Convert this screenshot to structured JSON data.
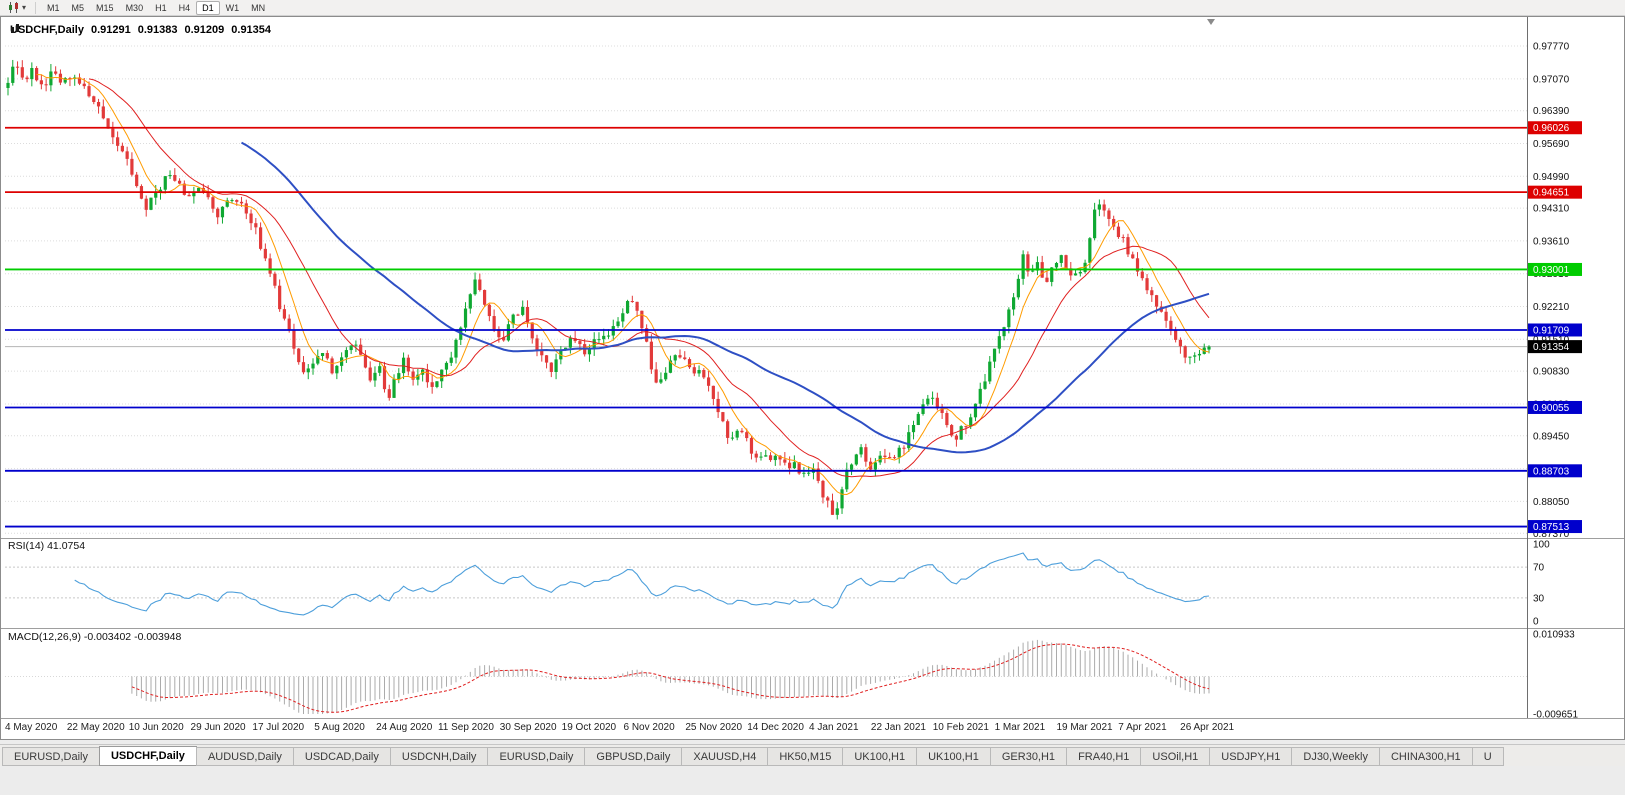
{
  "toolbar": {
    "chart_type_icon": "candlestick-chart-icon",
    "dropdown_icon": "chevron-down-icon",
    "timeframes": [
      "M1",
      "M5",
      "M15",
      "M30",
      "H1",
      "H4",
      "D1",
      "W1",
      "MN"
    ],
    "active_timeframe": "D1"
  },
  "chart": {
    "symbol": "USDCHF,Daily",
    "open": "0.91291",
    "high": "0.91383",
    "low": "0.91209",
    "close": "0.91354"
  },
  "chart_data": {
    "type": "candlestick",
    "symbol": "USDCHF",
    "timeframe": "Daily",
    "title": "USDCHF,Daily 0.91291 0.91383 0.91209 0.91354",
    "current_ohlc": {
      "open": 0.91291,
      "high": 0.91383,
      "low": 0.91209,
      "close": 0.91354
    },
    "current_price": 0.91354,
    "current_price_label": "0.91354",
    "y_axis": {
      "ticks": [
        0.9777,
        0.9707,
        0.9639,
        0.9569,
        0.9499,
        0.9431,
        0.9361,
        0.9291,
        0.9221,
        0.9151,
        0.9083,
        0.9013,
        0.8945,
        0.8875,
        0.8805,
        0.8737
      ],
      "plot_price_top": 0.9839,
      "plot_price_bottom": 0.8729
    },
    "x_axis": {
      "dates": [
        "4 May 2020",
        "22 May 2020",
        "10 Jun 2020",
        "29 Jun 2020",
        "17 Jul 2020",
        "5 Aug 2020",
        "24 Aug 2020",
        "11 Sep 2020",
        "30 Sep 2020",
        "19 Oct 2020",
        "6 Nov 2020",
        "25 Nov 2020",
        "14 Dec 2020",
        "4 Jan 2021",
        "22 Jan 2021",
        "10 Feb 2021",
        "1 Mar 2021",
        "19 Mar 2021",
        "7 Apr 2021",
        "26 Apr 2021"
      ]
    },
    "levels": [
      {
        "price": 0.96026,
        "label": "0.96026",
        "color": "#DD0000"
      },
      {
        "price": 0.94651,
        "label": "0.94651",
        "color": "#DD0000"
      },
      {
        "price": 0.93001,
        "label": "0.93001",
        "color": "#00CC00"
      },
      {
        "price": 0.91709,
        "label": "0.91709",
        "color": "#0000CC"
      },
      {
        "price": 0.90055,
        "label": "0.90055",
        "color": "#0000CC"
      },
      {
        "price": 0.88703,
        "label": "0.88703",
        "color": "#0000CC"
      },
      {
        "price": 0.87513,
        "label": "0.87513",
        "color": "#0000CC"
      }
    ],
    "candle_count": 253,
    "price_path": [
      [
        0.0,
        0.969
      ],
      [
        0.006,
        0.9745
      ],
      [
        0.012,
        0.9705
      ],
      [
        0.02,
        0.9725
      ],
      [
        0.028,
        0.969
      ],
      [
        0.036,
        0.9718
      ],
      [
        0.044,
        0.97
      ],
      [
        0.053,
        0.9712
      ],
      [
        0.062,
        0.9695
      ],
      [
        0.072,
        0.966
      ],
      [
        0.082,
        0.9615
      ],
      [
        0.092,
        0.9565
      ],
      [
        0.1,
        0.953
      ],
      [
        0.108,
        0.948
      ],
      [
        0.114,
        0.9432
      ],
      [
        0.12,
        0.945
      ],
      [
        0.127,
        0.9475
      ],
      [
        0.134,
        0.9505
      ],
      [
        0.142,
        0.9478
      ],
      [
        0.15,
        0.9462
      ],
      [
        0.158,
        0.9472
      ],
      [
        0.166,
        0.945
      ],
      [
        0.174,
        0.942
      ],
      [
        0.182,
        0.9438
      ],
      [
        0.19,
        0.9448
      ],
      [
        0.198,
        0.9425
      ],
      [
        0.206,
        0.9388
      ],
      [
        0.214,
        0.9322
      ],
      [
        0.222,
        0.9258
      ],
      [
        0.23,
        0.9192
      ],
      [
        0.238,
        0.9135
      ],
      [
        0.246,
        0.908
      ],
      [
        0.254,
        0.9108
      ],
      [
        0.263,
        0.9125
      ],
      [
        0.271,
        0.9082
      ],
      [
        0.279,
        0.9112
      ],
      [
        0.287,
        0.9148
      ],
      [
        0.295,
        0.9105
      ],
      [
        0.303,
        0.9062
      ],
      [
        0.31,
        0.9092
      ],
      [
        0.316,
        0.9022
      ],
      [
        0.323,
        0.9068
      ],
      [
        0.33,
        0.9108
      ],
      [
        0.338,
        0.9062
      ],
      [
        0.346,
        0.9078
      ],
      [
        0.354,
        0.9045
      ],
      [
        0.361,
        0.9082
      ],
      [
        0.368,
        0.9105
      ],
      [
        0.376,
        0.9172
      ],
      [
        0.383,
        0.9242
      ],
      [
        0.39,
        0.9278
      ],
      [
        0.397,
        0.9225
      ],
      [
        0.404,
        0.9182
      ],
      [
        0.412,
        0.9152
      ],
      [
        0.421,
        0.9208
      ],
      [
        0.429,
        0.9218
      ],
      [
        0.437,
        0.9152
      ],
      [
        0.445,
        0.9112
      ],
      [
        0.453,
        0.9088
      ],
      [
        0.461,
        0.9122
      ],
      [
        0.468,
        0.9152
      ],
      [
        0.474,
        0.9138
      ],
      [
        0.482,
        0.9122
      ],
      [
        0.49,
        0.9162
      ],
      [
        0.498,
        0.9148
      ],
      [
        0.506,
        0.9182
      ],
      [
        0.514,
        0.9225
      ],
      [
        0.52,
        0.9232
      ],
      [
        0.526,
        0.9185
      ],
      [
        0.532,
        0.9142
      ],
      [
        0.539,
        0.9052
      ],
      [
        0.546,
        0.9082
      ],
      [
        0.553,
        0.9112
      ],
      [
        0.561,
        0.9108
      ],
      [
        0.569,
        0.9088
      ],
      [
        0.579,
        0.9082
      ],
      [
        0.586,
        0.9032
      ],
      [
        0.593,
        0.8982
      ],
      [
        0.601,
        0.8938
      ],
      [
        0.609,
        0.8962
      ],
      [
        0.617,
        0.8922
      ],
      [
        0.625,
        0.8902
      ],
      [
        0.632,
        0.8892
      ],
      [
        0.64,
        0.8912
      ],
      [
        0.648,
        0.8872
      ],
      [
        0.656,
        0.8885
      ],
      [
        0.664,
        0.8852
      ],
      [
        0.671,
        0.8882
      ],
      [
        0.678,
        0.8825
      ],
      [
        0.684,
        0.8802
      ],
      [
        0.689,
        0.8768
      ],
      [
        0.695,
        0.8842
      ],
      [
        0.702,
        0.8892
      ],
      [
        0.71,
        0.8912
      ],
      [
        0.718,
        0.8882
      ],
      [
        0.726,
        0.8902
      ],
      [
        0.737,
        0.8892
      ],
      [
        0.745,
        0.8922
      ],
      [
        0.753,
        0.8962
      ],
      [
        0.761,
        0.9012
      ],
      [
        0.768,
        0.9042
      ],
      [
        0.775,
        0.9002
      ],
      [
        0.782,
        0.8962
      ],
      [
        0.789,
        0.8938
      ],
      [
        0.796,
        0.8968
      ],
      [
        0.803,
        0.8992
      ],
      [
        0.81,
        0.9042
      ],
      [
        0.817,
        0.9092
      ],
      [
        0.824,
        0.9142
      ],
      [
        0.831,
        0.9192
      ],
      [
        0.838,
        0.9252
      ],
      [
        0.845,
        0.9332
      ],
      [
        0.851,
        0.9292
      ],
      [
        0.857,
        0.9322
      ],
      [
        0.863,
        0.9272
      ],
      [
        0.87,
        0.9302
      ],
      [
        0.877,
        0.9322
      ],
      [
        0.884,
        0.9282
      ],
      [
        0.895,
        0.9292
      ],
      [
        0.901,
        0.9362
      ],
      [
        0.906,
        0.9442
      ],
      [
        0.91,
        0.9452
      ],
      [
        0.915,
        0.9422
      ],
      [
        0.92,
        0.9402
      ],
      [
        0.926,
        0.9372
      ],
      [
        0.932,
        0.9342
      ],
      [
        0.938,
        0.9312
      ],
      [
        0.947,
        0.9272
      ],
      [
        0.953,
        0.9242
      ],
      [
        0.959,
        0.9212
      ],
      [
        0.965,
        0.9178
      ],
      [
        0.971,
        0.9152
      ],
      [
        0.977,
        0.9132
      ],
      [
        0.983,
        0.9102
      ],
      [
        0.989,
        0.9122
      ],
      [
        0.996,
        0.9138
      ],
      [
        1.0,
        0.9135
      ]
    ],
    "moving_averages": [
      {
        "name": "ma-fast",
        "period": 7,
        "color": "#FF9C00",
        "width": 1
      },
      {
        "name": "ma-mid",
        "period": 18,
        "color": "#E02020",
        "width": 1
      },
      {
        "name": "ma-slow",
        "period": 50,
        "color": "#2E4FC4",
        "width": 2
      }
    ],
    "indicators": [
      {
        "name": "RSI",
        "label": "RSI(14) 41.0754",
        "period": 14,
        "last_value": 41.0754,
        "levels": [
          70,
          30
        ],
        "scale_labels": [
          "100",
          "70",
          "30",
          "0"
        ],
        "scale_values": [
          100,
          70,
          30,
          0
        ],
        "range": [
          0,
          100
        ],
        "color": "#4D9FDB"
      },
      {
        "name": "MACD",
        "label": "MACD(12,26,9) -0.003402 -0.003948",
        "params": [
          12,
          26,
          9
        ],
        "macd_value": -0.003402,
        "signal_value": -0.003948,
        "scale_labels": [
          "0.010933",
          "-0.009651"
        ],
        "range": [
          -0.009651,
          0.010933
        ],
        "histogram_color": "#ABABAB",
        "signal_color": "#E02020"
      }
    ],
    "colors": {
      "up": "#0FA832",
      "down": "#E23A3A",
      "grid": "#DCDCDC",
      "bid_line": "#B4B4B4",
      "scale_text": "#111111"
    }
  },
  "tabs": [
    {
      "label": "EURUSD,Daily",
      "active": false
    },
    {
      "label": "USDCHF,Daily",
      "active": true
    },
    {
      "label": "AUDUSD,Daily",
      "active": false
    },
    {
      "label": "USDCAD,Daily",
      "active": false
    },
    {
      "label": "USDCNH,Daily",
      "active": false
    },
    {
      "label": "EURUSD,Daily",
      "active": false
    },
    {
      "label": "GBPUSD,Daily",
      "active": false
    },
    {
      "label": "XAUUSD,H4",
      "active": false
    },
    {
      "label": "HK50,M15",
      "active": false
    },
    {
      "label": "UK100,H1",
      "active": false
    },
    {
      "label": "UK100,H1",
      "active": false
    },
    {
      "label": "GER30,H1",
      "active": false
    },
    {
      "label": "FRA40,H1",
      "active": false
    },
    {
      "label": "USOil,H1",
      "active": false
    },
    {
      "label": "USDJPY,H1",
      "active": false
    },
    {
      "label": "DJ30,Weekly",
      "active": false
    },
    {
      "label": "CHINA300,H1",
      "active": false
    },
    {
      "label": "U",
      "active": false
    }
  ]
}
